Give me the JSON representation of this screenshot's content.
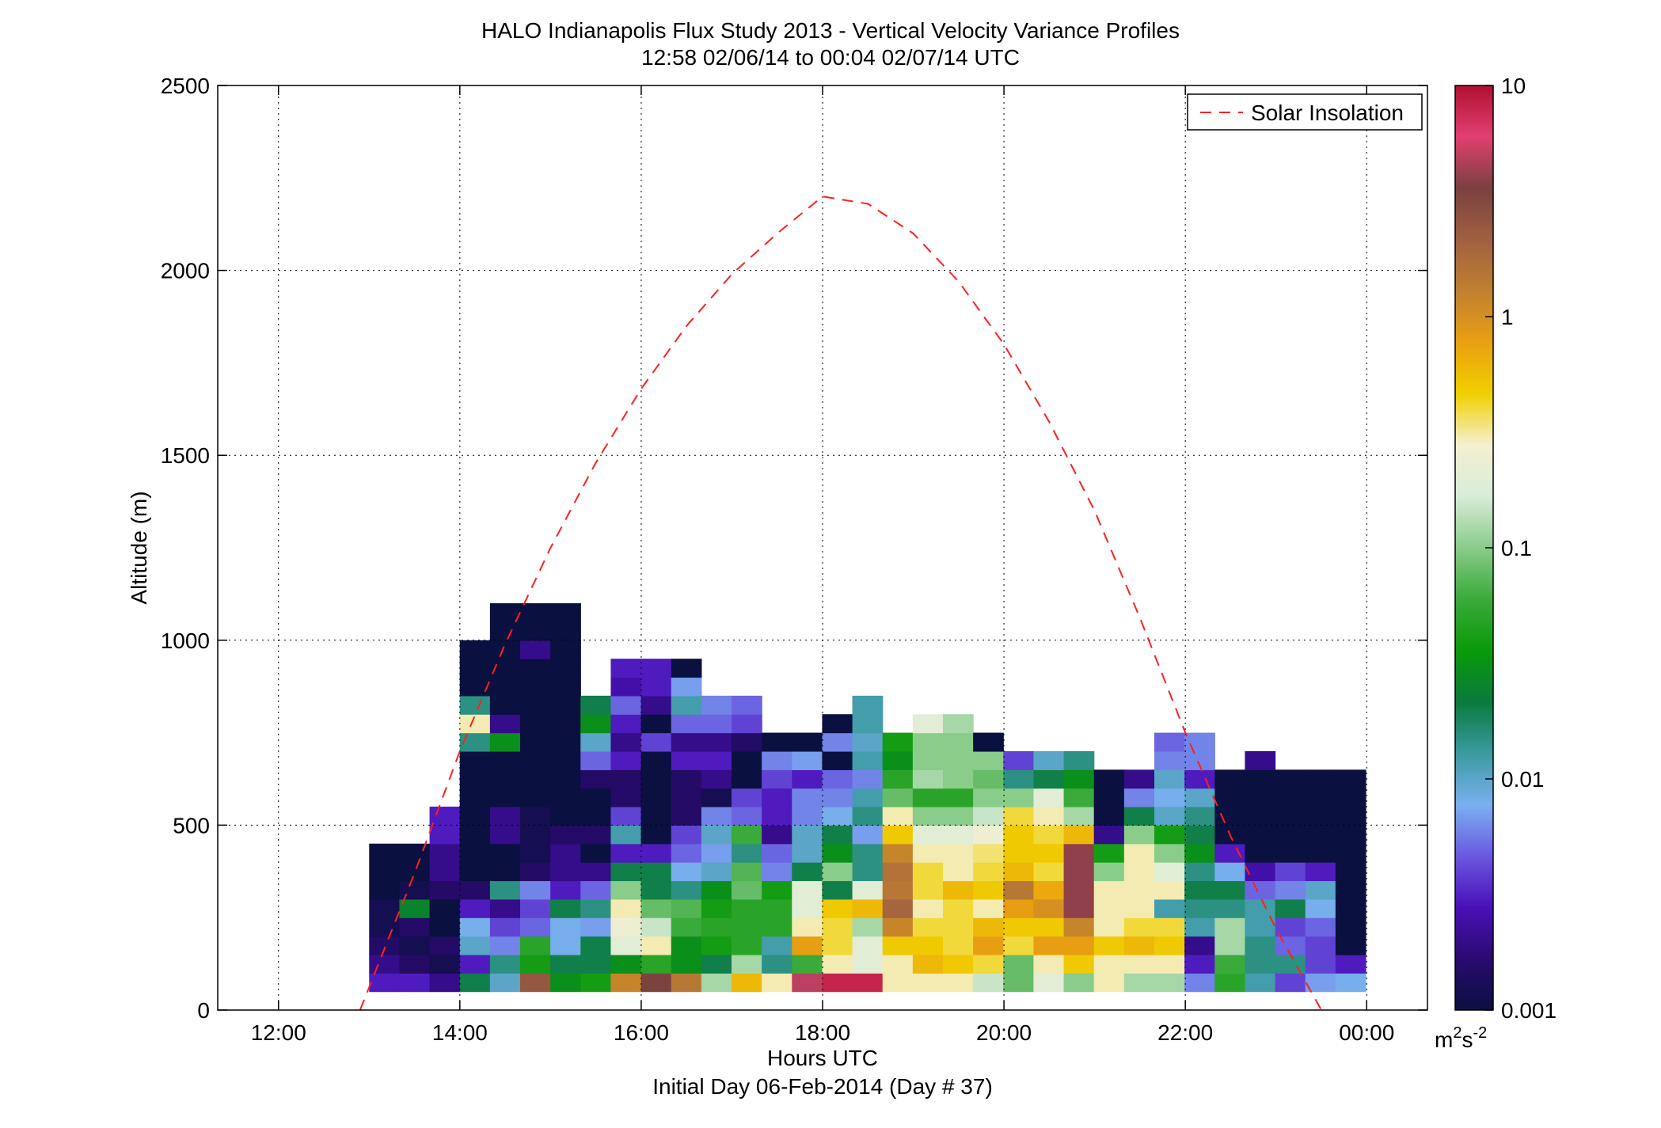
{
  "title": "HALO Indianapolis Flux Study 2013 - Vertical Velocity Variance Profiles",
  "subtitle": "12:58 02/06/14 to 00:04 02/07/14  UTC",
  "chart_data": {
    "type": "heatmap",
    "xlabel": "Hours UTC",
    "xlabel2": "Initial Day 06-Feb-2014 (Day # 37)",
    "ylabel": "Altitude (m)",
    "xlim": [
      11.33,
      24.67
    ],
    "ylim": [
      0,
      2500
    ],
    "grid": true,
    "x_ticks": [
      {
        "v": 12,
        "label": "12:00"
      },
      {
        "v": 14,
        "label": "14:00"
      },
      {
        "v": 16,
        "label": "16:00"
      },
      {
        "v": 18,
        "label": "18:00"
      },
      {
        "v": 20,
        "label": "20:00"
      },
      {
        "v": 22,
        "label": "22:00"
      },
      {
        "v": 24,
        "label": "00:00"
      }
    ],
    "y_ticks": [
      {
        "v": 0,
        "label": "0"
      },
      {
        "v": 500,
        "label": "500"
      },
      {
        "v": 1000,
        "label": "1000"
      },
      {
        "v": 1500,
        "label": "1500"
      },
      {
        "v": 2000,
        "label": "2000"
      },
      {
        "v": 2500,
        "label": "2500"
      }
    ],
    "colorbar": {
      "scale": "log",
      "range": [
        0.001,
        10
      ],
      "ticks": [
        {
          "v": 0.001,
          "label": "0.001"
        },
        {
          "v": 0.01,
          "label": "0.01"
        },
        {
          "v": 0.1,
          "label": "0.1"
        },
        {
          "v": 1,
          "label": "1"
        },
        {
          "v": 10,
          "label": "10"
        }
      ],
      "unit_base": "m",
      "unit_sup1": "2",
      "unit_mid": "s",
      "unit_sup2": "-2",
      "stops": [
        "#0a1040",
        "#2a0a70",
        "#4a10b8",
        "#6a58e0",
        "#7ab0f0",
        "#3a9aa0",
        "#0a7a3a",
        "#0a9a0a",
        "#3aaa3a",
        "#8acc8a",
        "#d8ecd8",
        "#f4f0d0",
        "#f0d000",
        "#eaa010",
        "#c08030",
        "#a06040",
        "#7a4040",
        "#e04070",
        "#b01030"
      ]
    },
    "legend": {
      "placement": "top-right",
      "entries": [
        "Solar Insolation"
      ]
    },
    "series": [
      {
        "name": "Solar Insolation",
        "style": "dashed",
        "color": "#ff2020",
        "x": [
          12.9,
          13.5,
          14.0,
          14.5,
          15.0,
          15.5,
          16.0,
          16.5,
          17.0,
          17.5,
          18.0,
          18.5,
          19.0,
          19.5,
          20.0,
          20.5,
          21.0,
          21.5,
          22.0,
          22.5,
          23.0,
          23.5
        ],
        "y": [
          0,
          370,
          700,
          990,
          1250,
          1480,
          1680,
          1850,
          1990,
          2100,
          2200,
          2180,
          2100,
          1970,
          1800,
          1590,
          1350,
          1060,
          750,
          470,
          220,
          0
        ]
      },
      {
        "name": "",
        "type": "heatmap",
        "x_start": 13.0,
        "dt": 0.333,
        "y_start": 50,
        "dz": 50,
        "note_units": "m2 s-2",
        "columns": [
          [
            0.003,
            0.002,
            0.0015,
            0.0012,
            0.0012,
            0.001,
            0.001,
            0.001
          ],
          [
            0.003,
            0.0015,
            0.0012,
            0.0015,
            0.025,
            0.0012,
            0.001,
            0.001
          ],
          [
            0.002,
            0.0012,
            0.0015,
            0.001,
            0.001,
            0.0015,
            0.002,
            0.002,
            0.003,
            0.003
          ],
          [
            0.02,
            0.003,
            0.01,
            0.008,
            0.003,
            0.0015,
            0.001,
            0.001,
            0.001,
            0.001,
            0.001,
            0.001,
            0.001,
            0.015,
            0.3,
            0.015,
            0.001,
            0.001,
            0.001
          ],
          [
            0.01,
            0.015,
            0.006,
            0.004,
            0.002,
            0.015,
            0.001,
            0.001,
            0.002,
            0.002,
            0.001,
            0.001,
            0.001,
            0.03,
            0.002,
            0.001,
            0.001,
            0.001,
            0.001,
            0.001,
            0.001
          ],
          [
            2.5,
            0.04,
            0.05,
            0.005,
            0.004,
            0.006,
            0.0015,
            0.0012,
            0.0012,
            0.0012,
            0.001,
            0.001,
            0.001,
            0.001,
            0.001,
            0.001,
            0.001,
            0.001,
            0.002,
            0.001,
            0.001
          ],
          [
            0.03,
            0.02,
            0.008,
            0.008,
            0.02,
            0.003,
            0.002,
            0.002,
            0.0015,
            0.001,
            0.001,
            0.001,
            0.001,
            0.001,
            0.001,
            0.001,
            0.001,
            0.001,
            0.001,
            0.001,
            0.001
          ],
          [
            0.04,
            0.02,
            0.02,
            0.007,
            0.015,
            0.005,
            0.002,
            0.001,
            0.0015,
            0.001,
            0.001,
            0.0015,
            0.005,
            0.01,
            0.03,
            0.02
          ],
          [
            1.2,
            0.03,
            0.2,
            0.25,
            0.3,
            0.1,
            0.02,
            0.003,
            0.012,
            0.004,
            0.0015,
            0.0015,
            0.003,
            0.002,
            0.003,
            0.005,
            0.0025,
            0.003
          ],
          [
            3.5,
            0.05,
            0.3,
            0.15,
            0.08,
            0.02,
            0.02,
            0.003,
            0.001,
            0.001,
            0.001,
            0.001,
            0.001,
            0.004,
            0.001,
            0.002,
            0.003,
            0.003
          ],
          [
            1.5,
            0.03,
            0.03,
            0.06,
            0.07,
            0.015,
            0.008,
            0.005,
            0.004,
            0.0015,
            0.0015,
            0.0015,
            0.003,
            0.002,
            0.005,
            0.012,
            0.007,
            0.001
          ],
          [
            0.12,
            0.02,
            0.04,
            0.05,
            0.04,
            0.03,
            0.01,
            0.007,
            0.01,
            0.006,
            0.0012,
            0.002,
            0.003,
            0.002,
            0.005,
            0.006
          ],
          [
            0.6,
            0.12,
            0.05,
            0.05,
            0.05,
            0.08,
            0.07,
            0.015,
            0.06,
            0.005,
            0.004,
            0.001,
            0.001,
            0.0015,
            0.004,
            0.005
          ],
          [
            0.3,
            0.015,
            0.012,
            0.05,
            0.05,
            0.04,
            0.006,
            0.005,
            0.002,
            0.003,
            0.003,
            0.004,
            0.006,
            0.001
          ],
          [
            5,
            0.06,
            0.8,
            0.3,
            0.2,
            0.2,
            0.02,
            0.01,
            0.01,
            0.006,
            0.006,
            0.003,
            0.007,
            0.001
          ],
          [
            8,
            0.3,
            0.4,
            0.4,
            0.5,
            0.02,
            0.1,
            0.03,
            0.02,
            0.008,
            0.006,
            0.005,
            0.001,
            0.006,
            0.001
          ],
          [
            8,
            0.2,
            0.2,
            0.12,
            0.6,
            0.2,
            0.015,
            0.015,
            0.007,
            0.015,
            0.012,
            0.006,
            0.012,
            0.01,
            0.012,
            0.012
          ],
          [
            0.3,
            0.3,
            0.5,
            1.2,
            2.0,
            1.5,
            1.6,
            1.2,
            0.5,
            0.3,
            0.08,
            0.05,
            0.03,
            0.04
          ],
          [
            0.3,
            0.6,
            0.5,
            0.4,
            0.3,
            0.4,
            0.4,
            0.3,
            0.2,
            0.1,
            0.05,
            0.12,
            0.1,
            0.1,
            0.2
          ],
          [
            0.3,
            0.5,
            0.4,
            0.4,
            0.4,
            0.6,
            0.3,
            0.3,
            0.2,
            0.1,
            0.05,
            0.1,
            0.1,
            0.1,
            0.12
          ],
          [
            0.15,
            0.4,
            0.8,
            0.6,
            0.3,
            0.5,
            0.4,
            0.35,
            0.25,
            0.15,
            0.1,
            0.08,
            0.1,
            0.001
          ],
          [
            0.08,
            0.08,
            0.4,
            0.5,
            0.8,
            1.5,
            0.6,
            0.5,
            0.5,
            0.4,
            0.1,
            0.015,
            0.004
          ],
          [
            0.2,
            0.3,
            0.8,
            0.5,
            1.0,
            0.7,
            0.4,
            0.5,
            0.4,
            0.3,
            0.2,
            0.02,
            0.01
          ],
          [
            0.1,
            0.5,
            0.8,
            1.2,
            4.0,
            4.0,
            4.0,
            4.0,
            0.6,
            0.12,
            0.06,
            0.03,
            0.015
          ],
          [
            0.3,
            0.3,
            0.5,
            0.3,
            0.3,
            0.3,
            0.1,
            0.04,
            0.002,
            0.001,
            0.001,
            0.001
          ],
          [
            0.12,
            0.3,
            0.6,
            0.4,
            0.3,
            0.3,
            0.3,
            0.3,
            0.1,
            0.02,
            0.006,
            0.002
          ],
          [
            0.12,
            0.3,
            0.5,
            0.4,
            0.012,
            0.3,
            0.2,
            0.1,
            0.04,
            0.01,
            0.008,
            0.01,
            0.006,
            0.005
          ],
          [
            0.006,
            0.003,
            0.002,
            0.012,
            0.015,
            0.02,
            0.015,
            0.03,
            0.02,
            0.015,
            0.01,
            0.003,
            0.006,
            0.006
          ],
          [
            0.05,
            0.06,
            0.12,
            0.12,
            0.015,
            0.02,
            0.008,
            0.003,
            0.001,
            0.001,
            0.001,
            0.001
          ],
          [
            0.012,
            0.015,
            0.015,
            0.012,
            0.012,
            0.005,
            0.0025,
            0.001,
            0.001,
            0.001,
            0.001,
            0.001,
            0.002
          ],
          [
            0.004,
            0.015,
            0.005,
            0.004,
            0.02,
            0.006,
            0.004,
            0.001,
            0.001,
            0.001,
            0.001,
            0.001
          ],
          [
            0.007,
            0.004,
            0.004,
            0.005,
            0.008,
            0.01,
            0.003,
            0.001,
            0.001,
            0.001,
            0.001,
            0.001
          ],
          [
            0.008,
            0.003,
            0.001,
            0.001,
            0.001,
            0.001,
            0.001,
            0.001,
            0.001,
            0.001,
            0.001,
            0.001
          ]
        ]
      }
    ]
  }
}
